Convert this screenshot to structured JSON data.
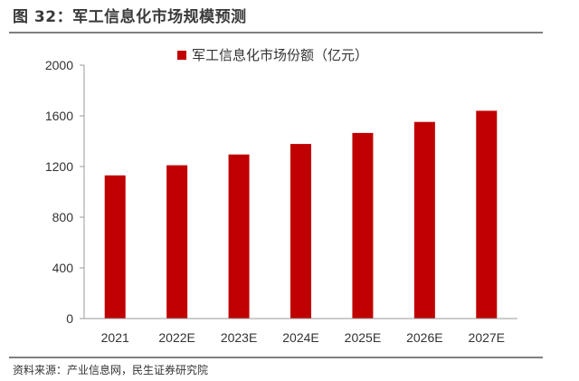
{
  "figure_title": "图 32：军工信息化市场规模预测",
  "source_note": "资料来源：产业信息网，民生证券研究院",
  "chart_data": {
    "type": "bar",
    "categories": [
      "2021",
      "2022E",
      "2023E",
      "2024E",
      "2025E",
      "2026E",
      "2027E"
    ],
    "series": [
      {
        "name": "军工信息化市场份额（亿元）",
        "values": [
          1130,
          1210,
          1295,
          1378,
          1465,
          1552,
          1640
        ],
        "color": "#c00000"
      }
    ],
    "ylim": [
      0,
      2000
    ],
    "yticks": [
      0,
      400,
      800,
      1200,
      1600,
      2000
    ],
    "grid": false,
    "legend": "top-center",
    "title": "",
    "xlabel": "",
    "ylabel": ""
  }
}
